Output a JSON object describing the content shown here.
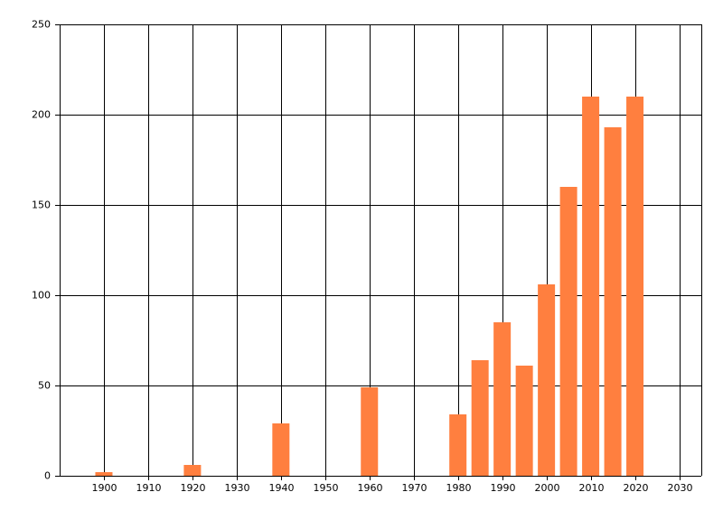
{
  "chart_data": {
    "type": "bar",
    "x": [
      1900,
      1920,
      1940,
      1960,
      1980,
      1985,
      1990,
      1995,
      2000,
      2005,
      2010,
      2015,
      2020
    ],
    "values": [
      2,
      6,
      29,
      49,
      34,
      64,
      85,
      61,
      106,
      160,
      210,
      193,
      210
    ],
    "color": "#ff7f3f",
    "xlim": [
      1890,
      2035
    ],
    "xticks": [
      1900,
      1910,
      1920,
      1930,
      1940,
      1950,
      1960,
      1970,
      1980,
      1990,
      2000,
      2010,
      2020,
      2030
    ],
    "ylim": [
      0,
      250
    ],
    "yticks": [
      0,
      50,
      100,
      150,
      200,
      250
    ],
    "grid": true
  }
}
